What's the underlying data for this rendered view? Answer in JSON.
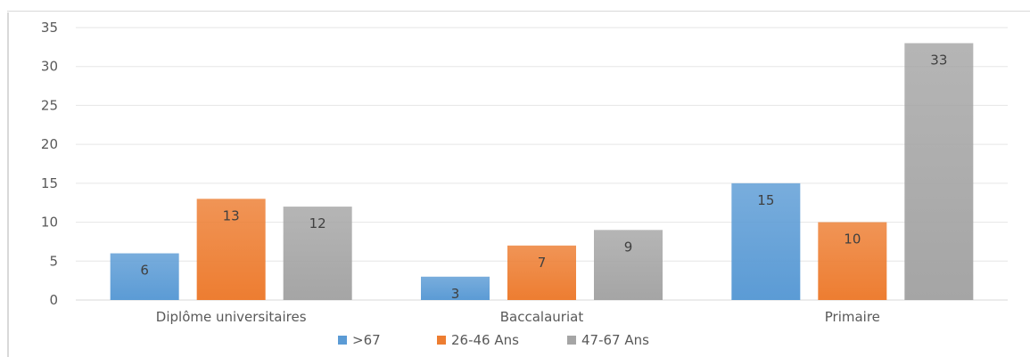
{
  "chart_data": {
    "type": "bar",
    "title": "",
    "xlabel": "",
    "ylabel": "",
    "ylim": [
      0,
      35
    ],
    "yticks": [
      "0",
      "5",
      "10",
      "15",
      "20",
      "25",
      "30",
      "35"
    ],
    "grid": true,
    "legend_position": "bottom",
    "categories": [
      "Diplôme universitaires",
      "Baccalauriat",
      "Primaire"
    ],
    "series": [
      {
        "name": ">67",
        "values": [
          6,
          3,
          15
        ],
        "color": "#5b9bd5"
      },
      {
        "name": "26-46 Ans",
        "values": [
          13,
          7,
          10
        ],
        "color": "#ed7d31"
      },
      {
        "name": "47-67 Ans",
        "values": [
          12,
          9,
          33
        ],
        "color": "#a5a5a5"
      }
    ]
  },
  "colors": {
    "grid": "#e6e6e6",
    "axis": "#d9d9d9",
    "tick_text": "#595959",
    "label_text": "#404040"
  }
}
